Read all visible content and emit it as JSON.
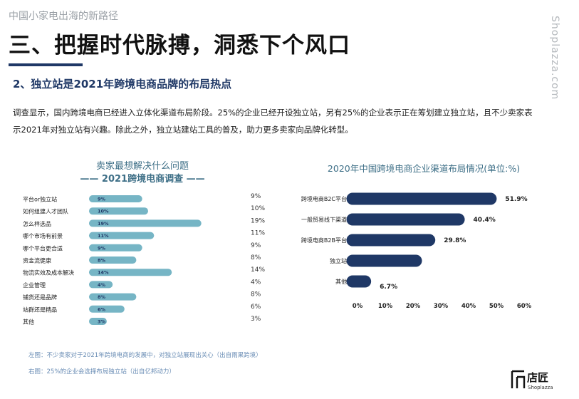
{
  "header": {
    "kicker": "中国小家电出海的新路径",
    "title": "三、把握时代脉搏，洞悉下个风口",
    "vertical_brand": "Shoplazza.com"
  },
  "section": {
    "subtitle": "2、独立站是2021年跨境电商品牌的布局热点",
    "body": "调查显示，国内跨境电商已经进入立体化渠道布局阶段。25%的企业已经开设独立站，另有25%的企业表示正在筹划建立独立站，且不少卖家表示2021年对独立站有兴趣。除此之外，独立站建站工具的普及，助力更多卖家向品牌化转型。"
  },
  "left_chart": {
    "title_line1": "卖家最想解决什么问题",
    "title_line2": "—— 2021跨境电商调查 ——"
  },
  "right_chart": {
    "title": "2020年中国跨境电商企业渠道布局情况(单位:%)"
  },
  "notes": {
    "left": "左图：不少卖家对于2021年跨境电商的发展中，对独立站展现出关心（出自雨果跨境）",
    "right": "右图：25%的企业会选择布局独立站（出自亿邦动力）"
  },
  "logo": {
    "main": "店匠",
    "sub": "Shoplazza"
  },
  "colors": {
    "navy": "#1f3866",
    "teal_bar": "#76b5c5",
    "chart_title": "#3e6f87"
  },
  "chart_data": [
    {
      "type": "bar",
      "orientation": "horizontal",
      "title": "卖家最想解决什么问题",
      "subtitle": "2021跨境电商调查",
      "categories": [
        "平台or独立站",
        "如何组建人才团队",
        "怎么样选品",
        "哪个市场有前景",
        "哪个平台更合适",
        "资金流健康",
        "物流实效及成本解决",
        "企业管理",
        "铺货还是品牌",
        "站群还是精品",
        "其他"
      ],
      "values": [
        9,
        10,
        19,
        11,
        9,
        8,
        14,
        4,
        8,
        6,
        3
      ],
      "bar_labels": [
        "9%",
        "10%",
        "19%",
        "11%",
        "9%",
        "8%",
        "14%",
        "4%",
        "8%",
        "6%",
        "3%"
      ],
      "right_labels": [
        "9%",
        "10%",
        "19%",
        "11%",
        "9%",
        "8%",
        "14%",
        "4%",
        "8%",
        "6%",
        "3%"
      ],
      "grid": false
    },
    {
      "type": "bar",
      "orientation": "horizontal",
      "title": "2020年中国跨境电商企业渠道布局情况(单位:%)",
      "categories": [
        "跨境电商B2C平台",
        "一般贸易线下渠道",
        "跨境电商B2B平台",
        "独立站",
        "其他"
      ],
      "values": [
        51.9,
        40.4,
        29.8,
        25,
        6.7
      ],
      "data_labels": [
        "51.9%",
        "40.4%",
        "29.8%",
        "",
        "6.7%"
      ],
      "x_ticks": [
        "0%",
        "10%",
        "20%",
        "30%",
        "40%",
        "50%",
        "60%"
      ],
      "xlim": [
        0,
        60
      ],
      "grid": false
    }
  ]
}
